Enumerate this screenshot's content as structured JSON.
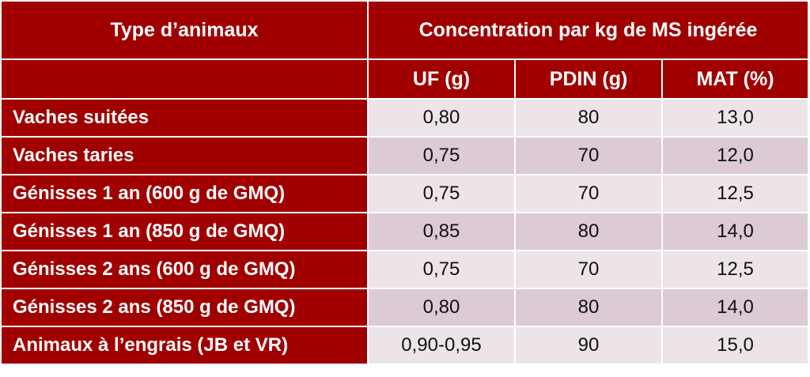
{
  "header": {
    "col1": "Type d’animaux",
    "group": "Concentration par kg de MS ingérée",
    "sub": [
      "UF (g)",
      "PDIN (g)",
      "MAT (%)"
    ]
  },
  "rows": [
    {
      "type": "Vaches suitées",
      "uf": "0,80",
      "pdin": "80",
      "mat": "13,0"
    },
    {
      "type": "Vaches taries",
      "uf": "0,75",
      "pdin": "70",
      "mat": "12,0"
    },
    {
      "type": "Génisses 1 an (600 g de GMQ)",
      "uf": "0,75",
      "pdin": "70",
      "mat": "12,5"
    },
    {
      "type": "Génisses 1 an (850 g de GMQ)",
      "uf": "0,85",
      "pdin": "80",
      "mat": "14,0"
    },
    {
      "type": "Génisses 2 ans (600 g de GMQ)",
      "uf": "0,75",
      "pdin": "70",
      "mat": "12,5"
    },
    {
      "type": "Génisses 2 ans (850 g de GMQ)",
      "uf": "0,80",
      "pdin": "80",
      "mat": "14,0"
    },
    {
      "type": "Animaux à l’engrais (JB et VR)",
      "uf": "0,90-0,95",
      "pdin": "90",
      "mat": "15,0"
    }
  ],
  "colors": {
    "header_bg": "#a00000",
    "row_light": "#ede4e9",
    "row_dark": "#dccad5"
  }
}
